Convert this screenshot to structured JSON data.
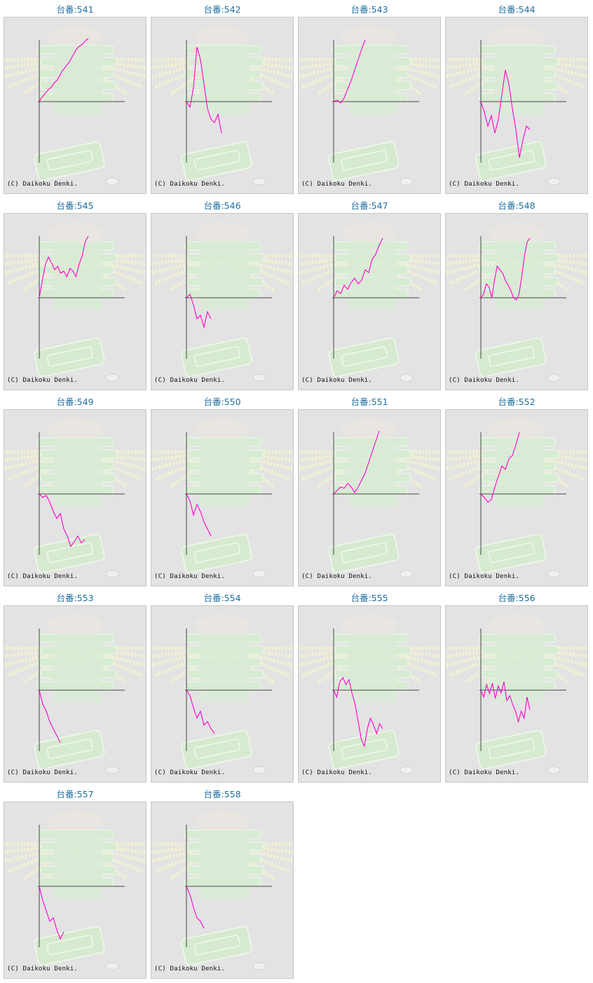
{
  "copyright": "(C) Daikoku Denki.",
  "colors": {
    "title": "#1f6f9f",
    "line": "#ff00cc",
    "axis": "#444444",
    "panel_bg": "#e3e3e3"
  },
  "cells": [
    {
      "title": "台番:541",
      "chart_data": {
        "type": "line",
        "values": [
          0,
          5,
          8,
          12,
          15,
          18,
          20,
          24,
          28,
          30,
          35,
          40,
          45,
          48,
          52,
          55,
          60,
          65,
          70,
          75,
          78,
          80,
          82,
          85,
          88,
          90
        ]
      }
    },
    {
      "title": "台番:542",
      "chart_data": {
        "type": "line",
        "values": [
          0,
          -8,
          20,
          78,
          60,
          25,
          -10,
          -25,
          -30,
          -18,
          -45
        ]
      }
    },
    {
      "title": "台番:543",
      "chart_data": {
        "type": "line",
        "values": [
          0,
          2,
          -2,
          5,
          18,
          30,
          45,
          60,
          75,
          88
        ]
      }
    },
    {
      "title": "台番:544",
      "chart_data": {
        "type": "line",
        "values": [
          0,
          -15,
          -35,
          -20,
          -45,
          -25,
          10,
          45,
          25,
          -10,
          -40,
          -80,
          -55,
          -35,
          -40
        ]
      }
    },
    {
      "title": "台番:545",
      "chart_data": {
        "type": "line",
        "values": [
          0,
          25,
          48,
          58,
          50,
          40,
          45,
          35,
          38,
          30,
          42,
          38,
          30,
          48,
          60,
          80,
          88
        ]
      }
    },
    {
      "title": "台番:546",
      "chart_data": {
        "type": "line",
        "values": [
          0,
          5,
          -10,
          -30,
          -25,
          -42,
          -20,
          -30
        ]
      }
    },
    {
      "title": "台番:547",
      "chart_data": {
        "type": "line",
        "values": [
          0,
          10,
          6,
          18,
          12,
          22,
          28,
          20,
          25,
          40,
          36,
          55,
          62,
          75,
          85
        ]
      }
    },
    {
      "title": "台番:548",
      "chart_data": {
        "type": "line",
        "values": [
          0,
          5,
          20,
          15,
          0,
          25,
          45,
          40,
          35,
          25,
          18,
          10,
          0,
          -3,
          5,
          30,
          60,
          80,
          85
        ]
      }
    },
    {
      "title": "台番:549",
      "chart_data": {
        "type": "line",
        "values": [
          0,
          -5,
          -2,
          -12,
          -25,
          -35,
          -28,
          -50,
          -60,
          -75,
          -68,
          -60,
          -70,
          -65
        ]
      }
    },
    {
      "title": "台番:550",
      "chart_data": {
        "type": "line",
        "values": [
          0,
          -10,
          -30,
          -15,
          -25,
          -40,
          -50,
          -60
        ]
      }
    },
    {
      "title": "台番:551",
      "chart_data": {
        "type": "line",
        "values": [
          0,
          5,
          10,
          8,
          15,
          10,
          2,
          10,
          20,
          30,
          45,
          60,
          75,
          90
        ]
      }
    },
    {
      "title": "台番:552",
      "chart_data": {
        "type": "line",
        "values": [
          0,
          -5,
          -12,
          -8,
          10,
          25,
          40,
          35,
          50,
          55,
          70,
          88
        ]
      }
    },
    {
      "title": "台番:553",
      "chart_data": {
        "type": "line",
        "values": [
          0,
          -20,
          -30,
          -45,
          -55,
          -65,
          -75
        ]
      }
    },
    {
      "title": "台番:554",
      "chart_data": {
        "type": "line",
        "values": [
          0,
          -8,
          -25,
          -40,
          -30,
          -50,
          -45,
          -55,
          -62
        ]
      }
    },
    {
      "title": "台番:555",
      "chart_data": {
        "type": "line",
        "values": [
          0,
          -10,
          12,
          18,
          8,
          15,
          -5,
          -20,
          -45,
          -70,
          -80,
          -55,
          -40,
          -50,
          -62,
          -48,
          -55
        ]
      }
    },
    {
      "title": "台番:556",
      "chart_data": {
        "type": "line",
        "values": [
          0,
          -10,
          8,
          -5,
          10,
          -12,
          6,
          -4,
          12,
          -15,
          -8,
          -20,
          -30,
          -45,
          -30,
          -40,
          -10,
          -28
        ]
      }
    },
    {
      "title": "台番:557",
      "chart_data": {
        "type": "line",
        "values": [
          0,
          -20,
          -35,
          -50,
          -45,
          -62,
          -75,
          -65
        ]
      }
    },
    {
      "title": "台番:558",
      "chart_data": {
        "type": "line",
        "values": [
          0,
          -12,
          -30,
          -45,
          -50,
          -60
        ]
      }
    }
  ]
}
